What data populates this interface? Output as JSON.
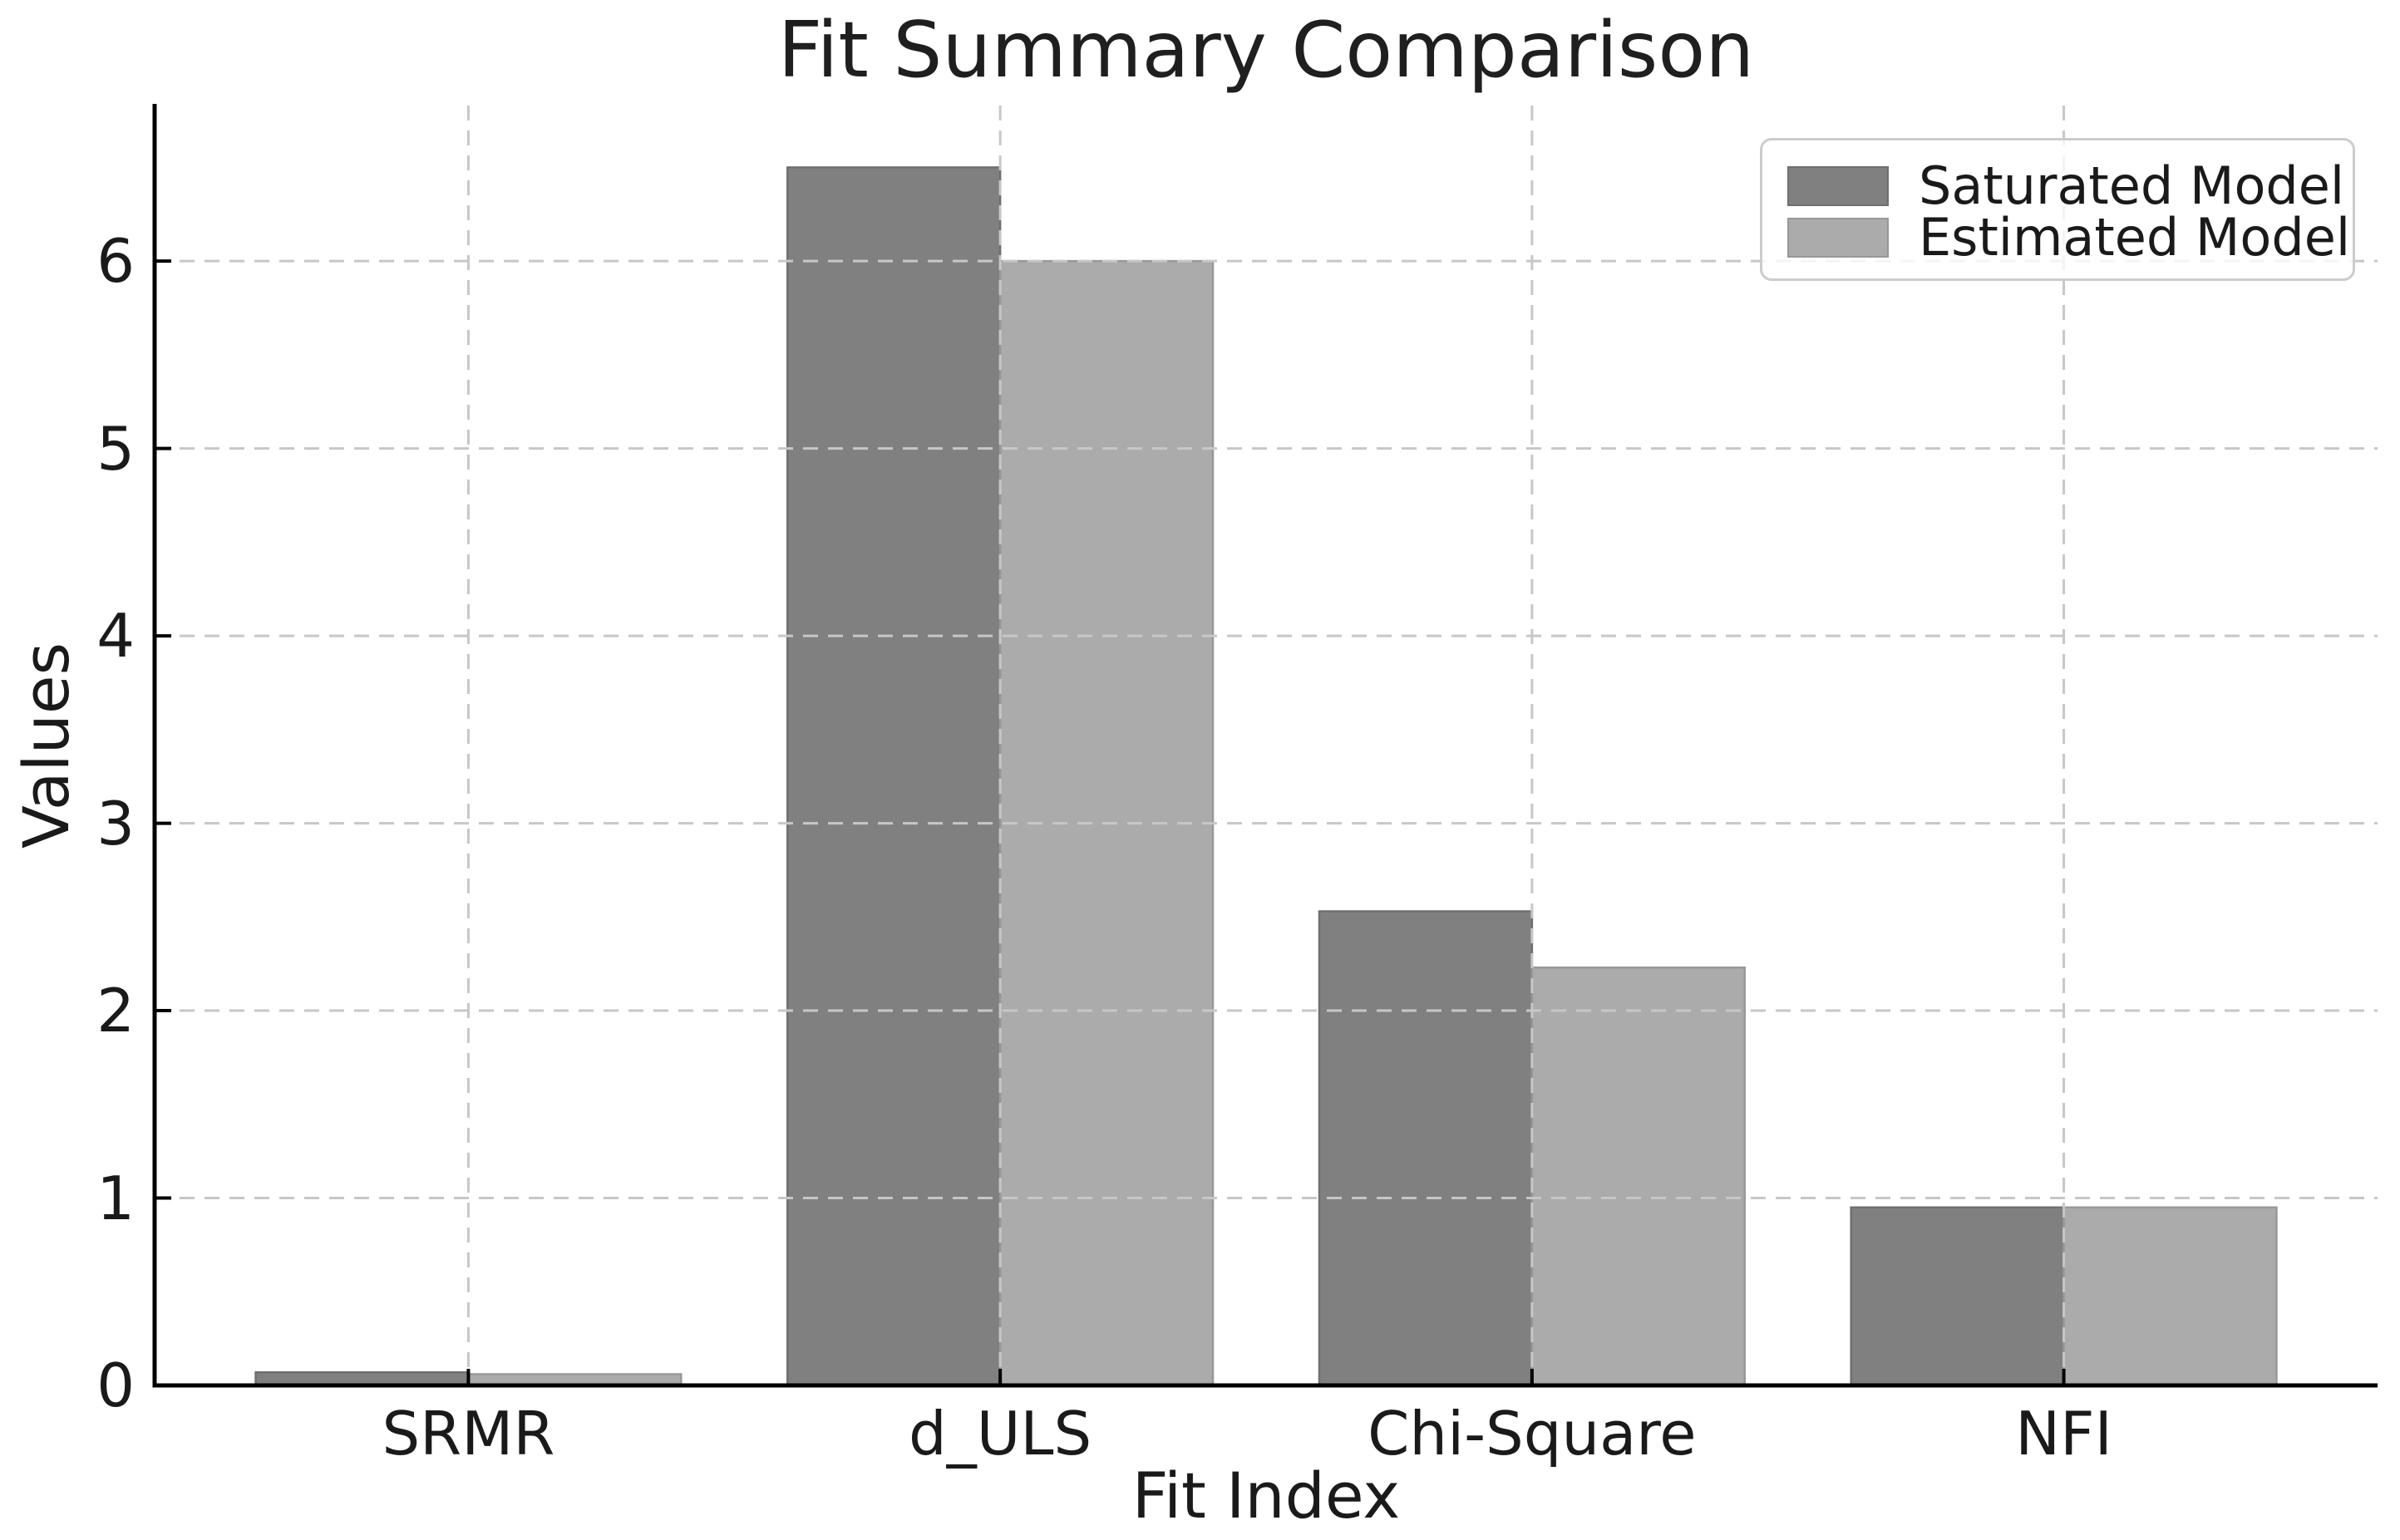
{
  "chart_data": {
    "type": "bar",
    "title": "Fit Summary Comparison",
    "xlabel": "Fit Index",
    "ylabel": "Values",
    "categories": [
      "SRMR",
      "d_ULS",
      "Chi-Square",
      "NFI"
    ],
    "series": [
      {
        "name": "Saturated Model",
        "color": "#808080",
        "edge_color": "#6f6f6f",
        "values": [
          0.07,
          6.5,
          2.53,
          0.95
        ]
      },
      {
        "name": "Estimated Model",
        "color": "#ababab",
        "edge_color": "#989898",
        "values": [
          0.06,
          6.0,
          2.23,
          0.95
        ]
      }
    ],
    "yticks": [
      0,
      1,
      2,
      3,
      4,
      5,
      6
    ],
    "ylim": [
      0,
      6.83
    ],
    "bar_width": 0.4,
    "grid": true,
    "grid_linestyle": "dashed",
    "grid_color": "#c7c7c7",
    "spine_color": "#000000",
    "text_color": "#1a1a1a",
    "legend_position": "upper right",
    "background_color": "#ffffff"
  }
}
